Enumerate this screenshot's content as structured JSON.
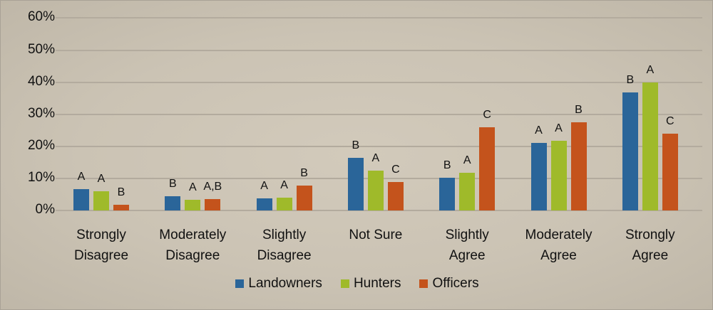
{
  "chart_data": {
    "type": "bar",
    "title": "",
    "xlabel": "",
    "ylabel": "",
    "ylim": [
      0,
      60
    ],
    "yticks": [
      "0%",
      "10%",
      "20%",
      "30%",
      "40%",
      "50%",
      "60%"
    ],
    "grid": true,
    "legend_position": "bottom",
    "categories": [
      "Strongly Disagree",
      "Moderately Disagree",
      "Slightly Disagree",
      "Not Sure",
      "Slightly Agree",
      "Moderately Agree",
      "Strongly Agree"
    ],
    "category_lines": [
      [
        "Strongly",
        "Disagree"
      ],
      [
        "Moderately",
        "Disagree"
      ],
      [
        "Slightly",
        "Disagree"
      ],
      [
        "Not Sure",
        ""
      ],
      [
        "Slightly",
        "Agree"
      ],
      [
        "Moderately",
        "Agree"
      ],
      [
        "Strongly",
        "Agree"
      ]
    ],
    "series": [
      {
        "name": "Landowners",
        "color": "#2a6599",
        "values": [
          6.7,
          4.4,
          3.7,
          16.3,
          10.3,
          21.0,
          36.7
        ],
        "labels": [
          "A",
          "B",
          "A",
          "B",
          "B",
          "A",
          "B"
        ]
      },
      {
        "name": "Hunters",
        "color": "#9fba2a",
        "values": [
          6.0,
          3.3,
          3.9,
          12.4,
          11.8,
          21.7,
          39.9
        ],
        "labels": [
          "A",
          "A",
          "A",
          "A",
          "A",
          "A",
          "A"
        ]
      },
      {
        "name": "Officers",
        "color": "#c4531c",
        "values": [
          1.7,
          3.6,
          7.8,
          8.9,
          25.9,
          27.4,
          23.9
        ],
        "labels": [
          "B",
          "A,B",
          "B",
          "C",
          "C",
          "B",
          "C"
        ]
      }
    ]
  },
  "legend": {
    "items": [
      {
        "label": "Landowners",
        "color": "#2a6599"
      },
      {
        "label": "Hunters",
        "color": "#9fba2a"
      },
      {
        "label": "Officers",
        "color": "#c4531c"
      }
    ]
  }
}
